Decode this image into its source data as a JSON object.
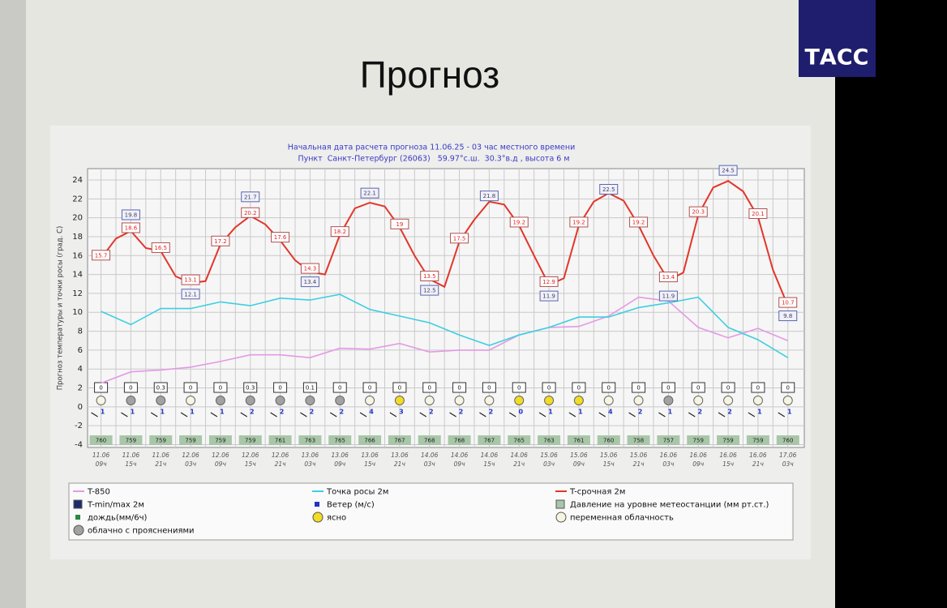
{
  "slide_title": "Прогноз",
  "logo": "ТАСС",
  "chart_data": {
    "type": "line",
    "title": "Начальная дата расчета прогноза 11.06.25 - 03 час местного времени",
    "subtitle": "Пункт  Санкт-Петербург (26063)   59.97°с.ш.  30.3°в.д , высота 6 м",
    "y_label": "Прогноз температуры и точки росы (град. С)",
    "categories": [
      {
        "date": "11.06",
        "hour": "09ч"
      },
      {
        "date": "11.06",
        "hour": "15ч"
      },
      {
        "date": "11.06",
        "hour": "21ч"
      },
      {
        "date": "12.06",
        "hour": "03ч"
      },
      {
        "date": "12.06",
        "hour": "09ч"
      },
      {
        "date": "12.06",
        "hour": "15ч"
      },
      {
        "date": "12.06",
        "hour": "21ч"
      },
      {
        "date": "13.06",
        "hour": "03ч"
      },
      {
        "date": "13.06",
        "hour": "09ч"
      },
      {
        "date": "13.06",
        "hour": "15ч"
      },
      {
        "date": "13.06",
        "hour": "21ч"
      },
      {
        "date": "14.06",
        "hour": "03ч"
      },
      {
        "date": "14.06",
        "hour": "09ч"
      },
      {
        "date": "14.06",
        "hour": "15ч"
      },
      {
        "date": "14.06",
        "hour": "21ч"
      },
      {
        "date": "15.06",
        "hour": "03ч"
      },
      {
        "date": "15.06",
        "hour": "09ч"
      },
      {
        "date": "15.06",
        "hour": "15ч"
      },
      {
        "date": "15.06",
        "hour": "21ч"
      },
      {
        "date": "16.06",
        "hour": "03ч"
      },
      {
        "date": "16.06",
        "hour": "09ч"
      },
      {
        "date": "16.06",
        "hour": "15ч"
      },
      {
        "date": "16.06",
        "hour": "21ч"
      },
      {
        "date": "17.06",
        "hour": "03ч"
      }
    ],
    "xlim": [
      -0.45,
      23.55
    ],
    "ylim": [
      -4.3,
      25.2
    ],
    "yticks": [
      -4,
      -2,
      0,
      2,
      4,
      6,
      8,
      10,
      12,
      14,
      16,
      18,
      20,
      22,
      24
    ],
    "grid": true,
    "series": [
      {
        "name": "T-850",
        "color": "#e49ae4",
        "x": [
          0,
          1,
          2,
          3,
          4,
          5,
          6,
          7,
          8,
          9,
          10,
          11,
          12,
          13,
          14,
          15,
          16,
          17,
          18,
          19,
          20,
          21,
          22,
          23
        ],
        "values": [
          2.5,
          3.7,
          3.9,
          4.2,
          4.8,
          5.5,
          5.5,
          5.2,
          6.2,
          6.1,
          6.7,
          5.8,
          6.0,
          6.0,
          7.6,
          8.4,
          8.5,
          9.6,
          11.6,
          11.2,
          8.4,
          7.3,
          8.3,
          7.0
        ]
      },
      {
        "name": "Точка росы 2м",
        "color": "#3ccfe2",
        "x": [
          0,
          1,
          2,
          3,
          4,
          5,
          6,
          7,
          8,
          9,
          10,
          11,
          12,
          13,
          14,
          15,
          16,
          17,
          18,
          19,
          20,
          21,
          22,
          23
        ],
        "values": [
          10.1,
          8.7,
          10.4,
          10.4,
          11.1,
          10.7,
          11.5,
          11.3,
          11.9,
          10.3,
          9.6,
          8.9,
          7.6,
          6.5,
          7.6,
          8.4,
          9.5,
          9.5,
          10.5,
          11.0,
          11.6,
          8.4,
          7.1,
          5.2
        ]
      },
      {
        "name": "T-срочная 2м",
        "color": "#e2362a",
        "x": [
          0,
          0.5,
          1,
          1.5,
          2,
          2.5,
          3,
          3.5,
          4,
          4.5,
          5,
          5.5,
          6,
          6.5,
          7,
          7.5,
          8,
          8.5,
          9,
          9.5,
          10,
          10.5,
          11,
          11.5,
          12,
          12.5,
          13,
          13.5,
          14,
          14.5,
          15,
          15.5,
          16,
          16.5,
          17,
          17.5,
          18,
          18.5,
          19,
          19.5,
          20,
          20.5,
          21,
          21.5,
          22,
          22.5,
          23
        ],
        "values": [
          15.7,
          17.8,
          18.6,
          16.8,
          16.5,
          13.8,
          13.1,
          13.3,
          17.2,
          19.0,
          20.2,
          19.3,
          17.6,
          15.5,
          14.3,
          14.0,
          18.2,
          21.0,
          21.6,
          21.2,
          19,
          16.0,
          13.5,
          12.7,
          17.5,
          19.8,
          21.7,
          21.4,
          19.2,
          16.0,
          12.9,
          13.6,
          19.2,
          21.7,
          22.6,
          21.8,
          19.2,
          16.0,
          13.4,
          14.2,
          20.3,
          23.2,
          23.9,
          22.8,
          20.1,
          14.5,
          10.7
        ]
      }
    ],
    "t_labels": {
      "x": [
        0,
        1,
        2,
        3,
        4,
        5,
        6,
        7,
        8,
        10,
        11,
        12,
        14,
        15,
        16,
        18,
        19,
        20,
        22,
        23
      ],
      "values": [
        15.7,
        18.6,
        16.5,
        13.1,
        17.2,
        20.2,
        17.6,
        14.3,
        18.2,
        19,
        13.5,
        17.5,
        19.2,
        12.9,
        19.2,
        19.2,
        13.4,
        20.3,
        20.1,
        10.7
      ]
    },
    "tminmax": {
      "name": "T-min/max 2м",
      "color": "#1c2a6e",
      "x": [
        1,
        3,
        5,
        7,
        9,
        11,
        13,
        15,
        17,
        19,
        21,
        23
      ],
      "values": [
        19.8,
        12.1,
        21.7,
        13.4,
        22.1,
        12.5,
        21.8,
        11.9,
        22.5,
        11.9,
        24.5,
        9.8
      ]
    },
    "precipitation": {
      "name": "дождь(мм/6ч)",
      "color": "#2a8a3a",
      "values": [
        0,
        0,
        0.3,
        0,
        0,
        0.3,
        0,
        0.1,
        0,
        0,
        0,
        0,
        0,
        0,
        0,
        0,
        0,
        0,
        0,
        0,
        0,
        0,
        0,
        0
      ]
    },
    "wind": {
      "name": "Ветер (м/с)",
      "color": "#2233c4",
      "values": [
        1,
        1,
        1,
        1,
        1,
        2,
        2,
        2,
        2,
        4,
        3,
        2,
        2,
        2,
        0,
        1,
        1,
        4,
        2,
        1,
        2,
        2,
        1,
        1
      ]
    },
    "pressure": {
      "name": "Давление на уровне метеостанции (мм рт.ст.)",
      "color": "#a9c6a9",
      "values": [
        760,
        759,
        759,
        759,
        759,
        759,
        761,
        763,
        765,
        766,
        767,
        768,
        768,
        767,
        765,
        763,
        761,
        760,
        758,
        757,
        759,
        759,
        759,
        760
      ]
    },
    "sky": {
      "kinds": [
        {
          "name": "ясно",
          "color": "#f2dc24"
        },
        {
          "name": "переменная облачность",
          "color": "#f7f5e2"
        },
        {
          "name": "облачно с прояснениями",
          "color": "#a2a2a2"
        }
      ],
      "values": [
        1,
        2,
        2,
        1,
        2,
        2,
        2,
        2,
        2,
        1,
        0,
        1,
        1,
        1,
        0,
        0,
        0,
        1,
        1,
        2,
        1,
        1,
        1,
        1
      ]
    }
  }
}
